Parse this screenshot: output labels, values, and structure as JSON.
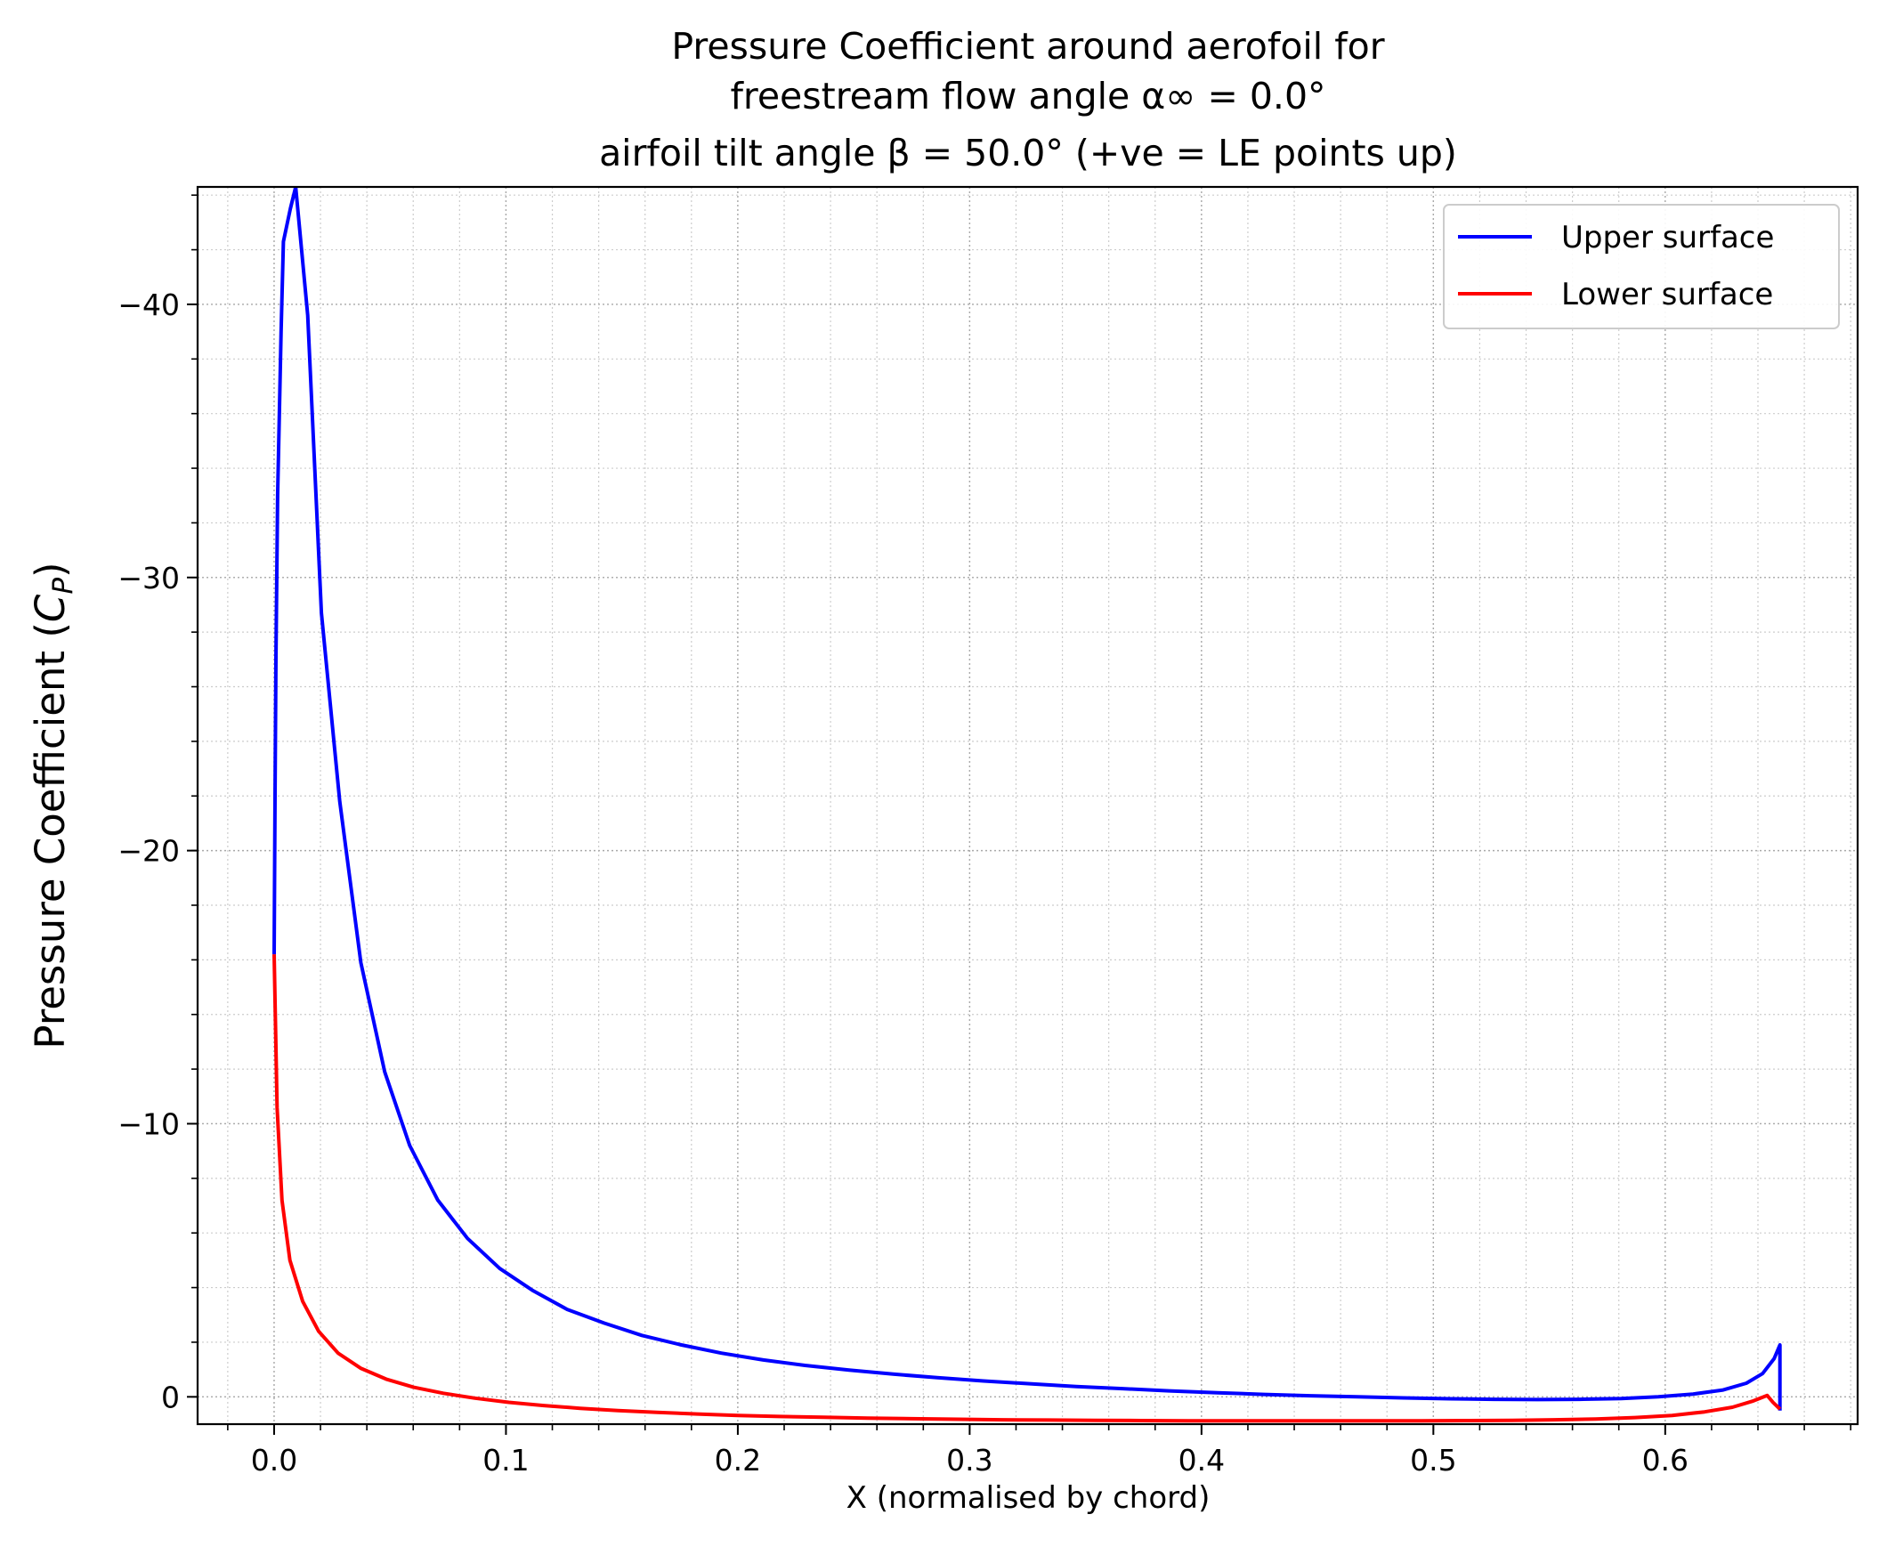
{
  "chart_data": {
    "type": "line",
    "title_lines": [
      "Pressure Coefficient around aerofoil for",
      "freestream flow angle α∞ = 0.0°",
      "airfoil tilt angle β = 50.0° (+ve = LE points up)"
    ],
    "xlabel": "X (normalised by chord)",
    "ylabel_main": "Pressure Coefficient (",
    "ylabel_symbol": "C",
    "ylabel_subscript": "P",
    "ylabel_close": ")",
    "xlim": [
      -0.033,
      0.683
    ],
    "ylim": [
      1.0,
      -44.3
    ],
    "y_inverted": true,
    "grid": "major and minor, dotted",
    "legend_position": "top-right",
    "x_ticks": [
      {
        "value": 0.0,
        "label": "0.0"
      },
      {
        "value": 0.1,
        "label": "0.1"
      },
      {
        "value": 0.2,
        "label": "0.2"
      },
      {
        "value": 0.3,
        "label": "0.3"
      },
      {
        "value": 0.4,
        "label": "0.4"
      },
      {
        "value": 0.5,
        "label": "0.5"
      },
      {
        "value": 0.6,
        "label": "0.6"
      }
    ],
    "y_ticks": [
      {
        "value": -40,
        "label": "−40"
      },
      {
        "value": -30,
        "label": "−30"
      },
      {
        "value": -20,
        "label": "−20"
      },
      {
        "value": -10,
        "label": "−10"
      },
      {
        "value": 0,
        "label": "0"
      }
    ],
    "series": [
      {
        "name": "Upper surface",
        "color": "#0000ff",
        "points": [
          [
            0.0,
            -16.2
          ],
          [
            0.0004,
            -22.0
          ],
          [
            0.0008,
            -27.0
          ],
          [
            0.0015,
            -33.0
          ],
          [
            0.003,
            -39.0
          ],
          [
            0.004,
            -42.3
          ],
          [
            0.007,
            -43.5
          ],
          [
            0.0093,
            -44.3
          ],
          [
            0.0145,
            -39.6
          ],
          [
            0.0204,
            -28.7
          ],
          [
            0.0283,
            -21.8
          ],
          [
            0.0374,
            -15.9
          ],
          [
            0.0477,
            -11.9
          ],
          [
            0.0585,
            -9.2
          ],
          [
            0.0706,
            -7.2
          ],
          [
            0.0834,
            -5.8
          ],
          [
            0.0973,
            -4.7
          ],
          [
            0.1114,
            -3.9
          ],
          [
            0.1264,
            -3.2
          ],
          [
            0.1424,
            -2.7
          ],
          [
            0.1586,
            -2.25
          ],
          [
            0.1757,
            -1.9
          ],
          [
            0.1929,
            -1.6
          ],
          [
            0.211,
            -1.35
          ],
          [
            0.229,
            -1.15
          ],
          [
            0.248,
            -0.98
          ],
          [
            0.267,
            -0.83
          ],
          [
            0.286,
            -0.7
          ],
          [
            0.306,
            -0.58
          ],
          [
            0.326,
            -0.48
          ],
          [
            0.346,
            -0.38
          ],
          [
            0.366,
            -0.3
          ],
          [
            0.386,
            -0.22
          ],
          [
            0.407,
            -0.15
          ],
          [
            0.427,
            -0.09
          ],
          [
            0.447,
            -0.04
          ],
          [
            0.467,
            0.0
          ],
          [
            0.487,
            0.04
          ],
          [
            0.507,
            0.07
          ],
          [
            0.526,
            0.09
          ],
          [
            0.545,
            0.1
          ],
          [
            0.563,
            0.09
          ],
          [
            0.581,
            0.06
          ],
          [
            0.597,
            0.0
          ],
          [
            0.612,
            -0.1
          ],
          [
            0.625,
            -0.25
          ],
          [
            0.635,
            -0.5
          ],
          [
            0.642,
            -0.85
          ],
          [
            0.647,
            -1.4
          ],
          [
            0.6495,
            -1.9
          ],
          [
            0.6495,
            0.5
          ]
        ]
      },
      {
        "name": "Lower surface",
        "color": "#ff0000",
        "points": [
          [
            0.0,
            -16.2
          ],
          [
            0.0013,
            -10.6
          ],
          [
            0.0034,
            -7.2
          ],
          [
            0.0068,
            -5.0
          ],
          [
            0.0123,
            -3.5
          ],
          [
            0.0192,
            -2.4
          ],
          [
            0.0276,
            -1.6
          ],
          [
            0.0373,
            -1.05
          ],
          [
            0.0483,
            -0.65
          ],
          [
            0.0602,
            -0.35
          ],
          [
            0.073,
            -0.13
          ],
          [
            0.0866,
            0.05
          ],
          [
            0.1012,
            0.2
          ],
          [
            0.1163,
            0.32
          ],
          [
            0.132,
            0.42
          ],
          [
            0.1483,
            0.5
          ],
          [
            0.1651,
            0.57
          ],
          [
            0.1825,
            0.63
          ],
          [
            0.2,
            0.68
          ],
          [
            0.218,
            0.72
          ],
          [
            0.237,
            0.75
          ],
          [
            0.256,
            0.78
          ],
          [
            0.275,
            0.8
          ],
          [
            0.295,
            0.82
          ],
          [
            0.314,
            0.84
          ],
          [
            0.334,
            0.85
          ],
          [
            0.354,
            0.86
          ],
          [
            0.374,
            0.87
          ],
          [
            0.394,
            0.88
          ],
          [
            0.415,
            0.88
          ],
          [
            0.435,
            0.88
          ],
          [
            0.455,
            0.88
          ],
          [
            0.475,
            0.88
          ],
          [
            0.495,
            0.88
          ],
          [
            0.514,
            0.87
          ],
          [
            0.534,
            0.86
          ],
          [
            0.552,
            0.84
          ],
          [
            0.57,
            0.81
          ],
          [
            0.587,
            0.76
          ],
          [
            0.603,
            0.68
          ],
          [
            0.617,
            0.55
          ],
          [
            0.629,
            0.38
          ],
          [
            0.638,
            0.15
          ],
          [
            0.644,
            -0.05
          ],
          [
            0.6465,
            0.2
          ],
          [
            0.6495,
            0.45
          ]
        ]
      }
    ]
  }
}
